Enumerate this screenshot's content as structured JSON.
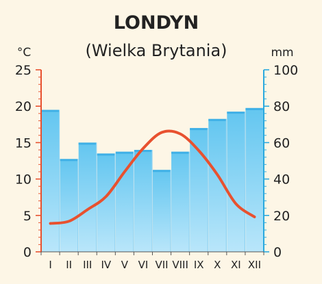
{
  "chart_data": {
    "type": "bar+line",
    "title": "LONDYN",
    "subtitle": "(Wielka Brytania)",
    "categories": [
      "I",
      "II",
      "III",
      "IV",
      "V",
      "VI",
      "VII",
      "VIII",
      "IX",
      "X",
      "XI",
      "XII"
    ],
    "temperature": {
      "unit": "°C",
      "ylim": [
        0,
        25
      ],
      "ticks": [
        0,
        5,
        10,
        15,
        20,
        25
      ],
      "values": [
        3.9,
        4.2,
        5.8,
        7.6,
        11.0,
        14.2,
        16.4,
        16.2,
        13.9,
        10.6,
        6.6,
        4.8
      ],
      "color": "#e8512f"
    },
    "precipitation": {
      "unit": "mm",
      "ylim": [
        0,
        100
      ],
      "ticks": [
        0,
        20,
        40,
        60,
        80,
        100
      ],
      "values": [
        78,
        51,
        60,
        54,
        55,
        56,
        45,
        55,
        68,
        73,
        77,
        79
      ],
      "color": "#63c6f0"
    },
    "colors": {
      "left_axis": "#e8512f",
      "right_axis": "#2aa9de",
      "background": "#fdf6e6"
    }
  }
}
